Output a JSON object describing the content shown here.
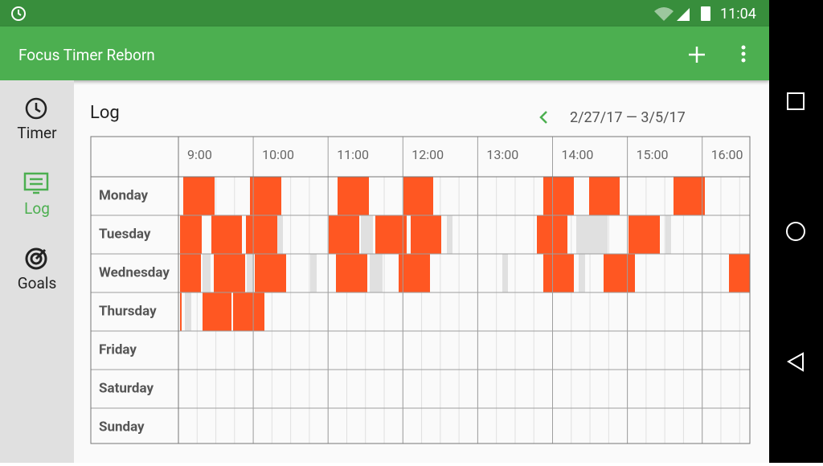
{
  "status_bar": {
    "time": "11:04"
  },
  "app_bar": {
    "title": "Focus Timer Reborn"
  },
  "sidebar": {
    "items": [
      "Timer",
      "Log",
      "Goals"
    ]
  },
  "log": {
    "title": "Log",
    "date_range": "2/27/17 — 3/5/17",
    "hours": [
      "9:00",
      "10:00",
      "11:00",
      "12:00",
      "13:00",
      "14:00",
      "15:00",
      "16:00"
    ],
    "days": [
      "Monday",
      "Tuesday",
      "Wednesday",
      "Thursday",
      "Friday",
      "Saturday",
      "Sunday"
    ]
  }
}
